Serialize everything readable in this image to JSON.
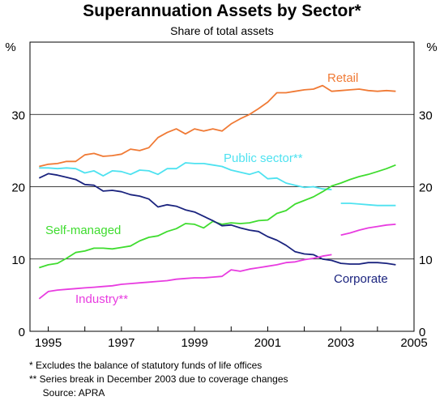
{
  "chart_data": {
    "type": "line",
    "title": "Superannuation Assets by Sector*",
    "subtitle": "Share of total assets",
    "ylabel_left": "%",
    "ylabel_right": "%",
    "ylim": [
      0,
      40
    ],
    "yticks": [
      0,
      10,
      20,
      30
    ],
    "xlim": [
      1994.5,
      2005.0
    ],
    "xticks": [
      1995,
      1997,
      1999,
      2001,
      2003,
      2005
    ],
    "grid": true,
    "series": [
      {
        "name": "Retail",
        "color": "#f07a35",
        "segments": [
          [
            [
              1994.75,
              22.8
            ],
            [
              1995.0,
              23.1
            ],
            [
              1995.25,
              23.2
            ],
            [
              1995.5,
              23.5
            ],
            [
              1995.75,
              23.5
            ],
            [
              1996.0,
              24.4
            ],
            [
              1996.25,
              24.6
            ],
            [
              1996.5,
              24.2
            ],
            [
              1996.75,
              24.3
            ],
            [
              1997.0,
              24.5
            ],
            [
              1997.25,
              25.2
            ],
            [
              1997.5,
              25.0
            ],
            [
              1997.75,
              25.4
            ],
            [
              1998.0,
              26.8
            ],
            [
              1998.25,
              27.5
            ],
            [
              1998.5,
              28.0
            ],
            [
              1998.75,
              27.3
            ],
            [
              1999.0,
              28.0
            ],
            [
              1999.25,
              27.7
            ],
            [
              1999.5,
              28.0
            ],
            [
              1999.75,
              27.7
            ],
            [
              2000.0,
              28.7
            ],
            [
              2000.25,
              29.4
            ],
            [
              2000.5,
              30.0
            ],
            [
              2000.75,
              30.8
            ],
            [
              2001.0,
              31.7
            ],
            [
              2001.25,
              33.0
            ],
            [
              2001.5,
              33.0
            ],
            [
              2001.75,
              33.2
            ],
            [
              2002.0,
              33.4
            ],
            [
              2002.25,
              33.5
            ],
            [
              2002.5,
              34.0
            ],
            [
              2002.75,
              33.2
            ],
            [
              2003.0,
              33.3
            ],
            [
              2003.25,
              33.4
            ],
            [
              2003.5,
              33.5
            ],
            [
              2003.75,
              33.3
            ],
            [
              2004.0,
              33.2
            ],
            [
              2004.25,
              33.3
            ],
            [
              2004.5,
              33.2
            ]
          ]
        ]
      },
      {
        "name": "Public sector**",
        "color": "#4ee2f0",
        "segments": [
          [
            [
              1994.75,
              22.6
            ],
            [
              1995.0,
              22.6
            ],
            [
              1995.25,
              22.5
            ],
            [
              1995.5,
              22.6
            ],
            [
              1995.75,
              22.5
            ],
            [
              1996.0,
              21.9
            ],
            [
              1996.25,
              22.2
            ],
            [
              1996.5,
              21.5
            ],
            [
              1996.75,
              22.2
            ],
            [
              1997.0,
              22.1
            ],
            [
              1997.25,
              21.7
            ],
            [
              1997.5,
              22.3
            ],
            [
              1997.75,
              22.2
            ],
            [
              1998.0,
              21.7
            ],
            [
              1998.25,
              22.5
            ],
            [
              1998.5,
              22.5
            ],
            [
              1998.75,
              23.3
            ],
            [
              1999.0,
              23.2
            ],
            [
              1999.25,
              23.2
            ],
            [
              1999.5,
              23.0
            ],
            [
              1999.75,
              22.8
            ],
            [
              2000.0,
              22.3
            ],
            [
              2000.25,
              22.0
            ],
            [
              2000.5,
              21.7
            ],
            [
              2000.75,
              22.1
            ],
            [
              2001.0,
              21.1
            ],
            [
              2001.25,
              21.2
            ],
            [
              2001.5,
              20.5
            ],
            [
              2001.75,
              20.2
            ],
            [
              2002.0,
              19.9
            ],
            [
              2002.25,
              20.0
            ],
            [
              2002.5,
              19.7
            ],
            [
              2002.75,
              19.6
            ]
          ],
          [
            [
              2003.0,
              17.7
            ],
            [
              2003.25,
              17.7
            ],
            [
              2003.5,
              17.6
            ],
            [
              2003.75,
              17.5
            ],
            [
              2004.0,
              17.4
            ],
            [
              2004.25,
              17.4
            ],
            [
              2004.5,
              17.4
            ]
          ]
        ]
      },
      {
        "name": "Self-managed",
        "color": "#3fdc2f",
        "segments": [
          [
            [
              1994.75,
              8.8
            ],
            [
              1995.0,
              9.2
            ],
            [
              1995.25,
              9.4
            ],
            [
              1995.5,
              10.1
            ],
            [
              1995.75,
              10.9
            ],
            [
              1996.0,
              11.1
            ],
            [
              1996.25,
              11.5
            ],
            [
              1996.5,
              11.5
            ],
            [
              1996.75,
              11.4
            ],
            [
              1997.0,
              11.6
            ],
            [
              1997.25,
              11.8
            ],
            [
              1997.5,
              12.5
            ],
            [
              1997.75,
              13.0
            ],
            [
              1998.0,
              13.2
            ],
            [
              1998.25,
              13.8
            ],
            [
              1998.5,
              14.2
            ],
            [
              1998.75,
              14.9
            ],
            [
              1999.0,
              14.8
            ],
            [
              1999.25,
              14.3
            ],
            [
              1999.5,
              15.2
            ],
            [
              1999.75,
              14.8
            ],
            [
              2000.0,
              15.0
            ],
            [
              2000.25,
              14.9
            ],
            [
              2000.5,
              15.0
            ],
            [
              2000.75,
              15.3
            ],
            [
              2001.0,
              15.4
            ],
            [
              2001.25,
              16.3
            ],
            [
              2001.5,
              16.7
            ],
            [
              2001.75,
              17.6
            ],
            [
              2002.0,
              18.1
            ],
            [
              2002.25,
              18.6
            ],
            [
              2002.5,
              19.3
            ],
            [
              2002.75,
              20.1
            ],
            [
              2003.0,
              20.5
            ],
            [
              2003.25,
              21.0
            ],
            [
              2003.5,
              21.4
            ],
            [
              2003.75,
              21.7
            ],
            [
              2004.0,
              22.1
            ],
            [
              2004.25,
              22.5
            ],
            [
              2004.5,
              23.0
            ]
          ]
        ]
      },
      {
        "name": "Corporate",
        "color": "#1a237e",
        "segments": [
          [
            [
              1994.75,
              21.2
            ],
            [
              1995.0,
              21.8
            ],
            [
              1995.25,
              21.6
            ],
            [
              1995.5,
              21.3
            ],
            [
              1995.75,
              21.0
            ],
            [
              1996.0,
              20.3
            ],
            [
              1996.25,
              20.2
            ],
            [
              1996.5,
              19.4
            ],
            [
              1996.75,
              19.5
            ],
            [
              1997.0,
              19.3
            ],
            [
              1997.25,
              18.9
            ],
            [
              1997.5,
              18.7
            ],
            [
              1997.75,
              18.3
            ],
            [
              1998.0,
              17.2
            ],
            [
              1998.25,
              17.5
            ],
            [
              1998.5,
              17.3
            ],
            [
              1998.75,
              16.8
            ],
            [
              1999.0,
              16.5
            ],
            [
              1999.25,
              15.9
            ],
            [
              1999.5,
              15.3
            ],
            [
              1999.75,
              14.6
            ],
            [
              2000.0,
              14.7
            ],
            [
              2000.25,
              14.3
            ],
            [
              2000.5,
              14.0
            ],
            [
              2000.75,
              13.8
            ],
            [
              2001.0,
              13.1
            ],
            [
              2001.25,
              12.6
            ],
            [
              2001.5,
              11.9
            ],
            [
              2001.75,
              11.0
            ],
            [
              2002.0,
              10.7
            ],
            [
              2002.25,
              10.6
            ],
            [
              2002.5,
              10.0
            ],
            [
              2002.75,
              9.8
            ],
            [
              2003.0,
              9.4
            ],
            [
              2003.25,
              9.3
            ],
            [
              2003.5,
              9.3
            ],
            [
              2003.75,
              9.5
            ],
            [
              2004.0,
              9.5
            ],
            [
              2004.25,
              9.4
            ],
            [
              2004.5,
              9.2
            ]
          ]
        ]
      },
      {
        "name": "Industry**",
        "color": "#e83ce0",
        "segments": [
          [
            [
              1994.75,
              4.5
            ],
            [
              1995.0,
              5.5
            ],
            [
              1995.25,
              5.7
            ],
            [
              1995.5,
              5.8
            ],
            [
              1995.75,
              5.9
            ],
            [
              1996.0,
              6.0
            ],
            [
              1996.25,
              6.1
            ],
            [
              1996.5,
              6.2
            ],
            [
              1996.75,
              6.3
            ],
            [
              1997.0,
              6.5
            ],
            [
              1997.25,
              6.6
            ],
            [
              1997.5,
              6.7
            ],
            [
              1997.75,
              6.8
            ],
            [
              1998.0,
              6.9
            ],
            [
              1998.25,
              7.0
            ],
            [
              1998.5,
              7.2
            ],
            [
              1998.75,
              7.3
            ],
            [
              1999.0,
              7.4
            ],
            [
              1999.25,
              7.4
            ],
            [
              1999.5,
              7.5
            ],
            [
              1999.75,
              7.6
            ],
            [
              2000.0,
              8.5
            ],
            [
              2000.25,
              8.3
            ],
            [
              2000.5,
              8.6
            ],
            [
              2000.75,
              8.8
            ],
            [
              2001.0,
              9.0
            ],
            [
              2001.25,
              9.2
            ],
            [
              2001.5,
              9.5
            ],
            [
              2001.75,
              9.6
            ],
            [
              2002.0,
              9.9
            ],
            [
              2002.25,
              10.1
            ],
            [
              2002.5,
              10.4
            ],
            [
              2002.75,
              10.6
            ]
          ],
          [
            [
              2003.0,
              13.3
            ],
            [
              2003.25,
              13.6
            ],
            [
              2003.5,
              14.0
            ],
            [
              2003.75,
              14.3
            ],
            [
              2004.0,
              14.5
            ],
            [
              2004.25,
              14.7
            ],
            [
              2004.5,
              14.8
            ]
          ]
        ]
      }
    ],
    "series_labels": {
      "Retail": "Retail",
      "Public sector**": "Public sector**",
      "Self-managed": "Self-managed",
      "Corporate": "Corporate",
      "Industry**": "Industry**"
    },
    "footnotes": [
      "*   Excludes the balance of statutory funds of life offices",
      "** Series break in December 2003 due to coverage changes",
      "     Source: APRA"
    ]
  }
}
